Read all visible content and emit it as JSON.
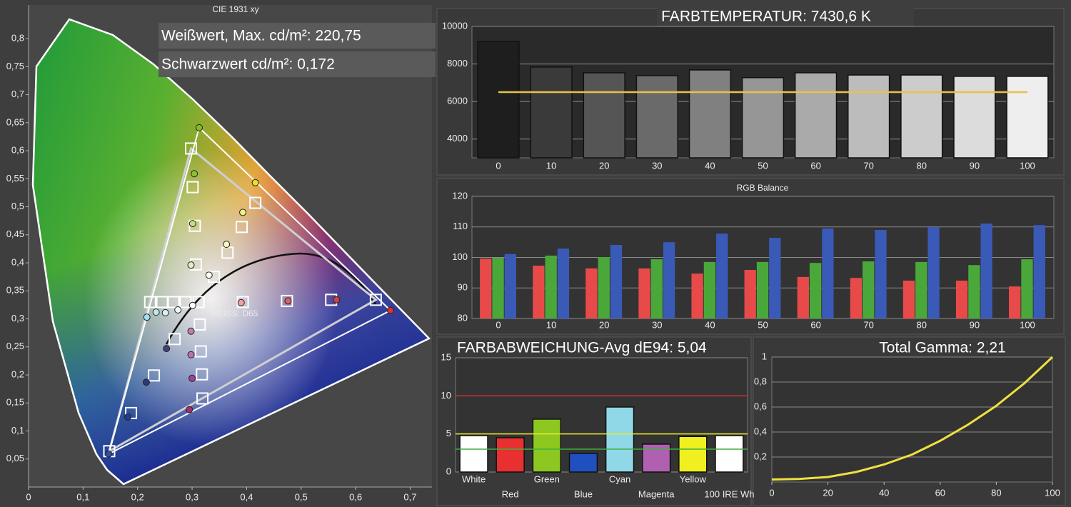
{
  "chart_data": [
    {
      "type": "scatter",
      "title": "CIE 1931 xy",
      "annotations": [
        "Weißwert, Max. cd/m²: 220,75",
        "Schwarzwert cd/m²: 0,172",
        "WEISS: D65"
      ],
      "xlim": [
        0,
        0.74
      ],
      "ylim": [
        0,
        0.86
      ],
      "xticks": [
        0,
        {
          "value": 0.1,
          "label": "0,1"
        },
        {
          "value": 0.2,
          "label": "0,2"
        },
        {
          "value": 0.3,
          "label": "0,3"
        },
        {
          "value": 0.4,
          "label": "0,4"
        },
        {
          "value": 0.5,
          "label": "0,5"
        },
        {
          "value": 0.6,
          "label": "0,6"
        },
        {
          "value": 0.7,
          "label": "0,7"
        }
      ],
      "yticks": [
        {
          "value": 0.05,
          "label": "0,05"
        },
        {
          "value": 0.1,
          "label": "0,1"
        },
        {
          "value": 0.15,
          "label": "0,15"
        },
        {
          "value": 0.2,
          "label": "0,2"
        },
        {
          "value": 0.25,
          "label": "0,25"
        },
        {
          "value": 0.3,
          "label": "0,3"
        },
        {
          "value": 0.35,
          "label": "0,35"
        },
        {
          "value": 0.4,
          "label": "0,4"
        },
        {
          "value": 0.45,
          "label": "0,45"
        },
        {
          "value": 0.5,
          "label": "0,5"
        },
        {
          "value": 0.55,
          "label": "0,55"
        },
        {
          "value": 0.6,
          "label": "0,6"
        },
        {
          "value": 0.65,
          "label": "0,65"
        },
        {
          "value": 0.7,
          "label": "0,7"
        },
        {
          "value": 0.75,
          "label": "0,75"
        },
        {
          "value": 0.8,
          "label": "0,8"
        }
      ],
      "grid": false,
      "series": [
        {
          "marker": "square",
          "color": "#ffffff",
          "x": [
            0.637,
            0.298,
            0.148,
            0.301,
            0.305,
            0.307,
            0.312,
            0.314,
            0.316,
            0.318,
            0.319,
            0.268,
            0.23,
            0.188,
            0.223,
            0.245,
            0.266,
            0.288,
            0.416,
            0.391,
            0.365,
            0.34,
            0.555,
            0.474,
            0.393
          ],
          "values": [
            0.334,
            0.604,
            0.064,
            0.535,
            0.466,
            0.397,
            0.33,
            0.29,
            0.242,
            0.201,
            0.158,
            0.264,
            0.199,
            0.132,
            0.33,
            0.33,
            0.33,
            0.33,
            0.507,
            0.464,
            0.418,
            0.375,
            0.334,
            0.332,
            0.33
          ]
        },
        {
          "marker": "circle",
          "color": "#ffffff",
          "x": [
            0.664,
            0.313,
            0.147,
            0.304,
            0.301,
            0.298,
            0.301,
            0.298,
            0.298,
            0.3,
            0.295,
            0.253,
            0.216,
            0.182,
            0.217,
            0.234,
            0.251,
            0.274,
            0.416,
            0.393,
            0.363,
            0.331,
            0.565,
            0.476,
            0.39
          ],
          "values": [
            0.315,
            0.641,
            0.059,
            0.559,
            0.47,
            0.396,
            0.324,
            0.278,
            0.236,
            0.194,
            0.138,
            0.247,
            0.187,
            0.125,
            0.303,
            0.312,
            0.311,
            0.316,
            0.543,
            0.49,
            0.433,
            0.378,
            0.334,
            0.332,
            0.329
          ],
          "colors": [
            "#e03030",
            "#80c020",
            "#3050a0",
            "#90c030",
            "#c0e080",
            "#e0f0c0",
            "#ffffff",
            "#c080b0",
            "#c070b0",
            "#a04090",
            "#a03070",
            "#404080",
            "#303878",
            "#2a3a8a",
            "#a0e0f0",
            "#c0e8f0",
            "#d8f0f8",
            "#f0f8ff",
            "#e8e020",
            "#f0f080",
            "#f8f8c0",
            "#fffff0",
            "#d04040",
            "#e06060",
            "#f0a0a0"
          ]
        }
      ]
    },
    {
      "type": "bar",
      "title": "FARBTEMPERATUR: 7430,6 K",
      "categories": [
        "0",
        "10",
        "20",
        "30",
        "40",
        "50",
        "60",
        "70",
        "80",
        "90",
        "100"
      ],
      "values": [
        9200,
        7835,
        7530,
        7380,
        7680,
        7270,
        7530,
        7410,
        7410,
        7340,
        7340
      ],
      "colors": [
        "#1e1e1e",
        "#3a3a3a",
        "#555555",
        "#6a6a6a",
        "#808080",
        "#969696",
        "#aaaaaa",
        "#bcbcbc",
        "#cccccc",
        "#dcdcdc",
        "#eeeeee"
      ],
      "ylim": [
        3000,
        10000
      ],
      "yticks": [
        4000,
        6000,
        8000,
        10000
      ],
      "grid": true,
      "reference_lines": [
        {
          "value": 6500,
          "color": "#e6c24a"
        }
      ]
    },
    {
      "type": "bar",
      "title": "RGB Balance",
      "categories": [
        "0",
        "10",
        "20",
        "30",
        "40",
        "50",
        "60",
        "70",
        "80",
        "90",
        "100"
      ],
      "series": [
        {
          "color": "#e84a4a",
          "values": [
            99.6,
            97.3,
            96.4,
            96.4,
            94.7,
            95.9,
            93.6,
            93.3,
            92.4,
            92.4,
            90.5
          ]
        },
        {
          "color": "#4aa83a",
          "values": [
            99.9,
            100.6,
            100.1,
            99.4,
            98.5,
            98.5,
            98.2,
            98.7,
            98.5,
            97.5,
            99.4
          ]
        },
        {
          "color": "#3a5ab8",
          "values": [
            101.1,
            102.9,
            104.1,
            105.0,
            107.8,
            106.4,
            109.5,
            109.0,
            109.9,
            111.1,
            110.6
          ]
        }
      ],
      "ylim": [
        80,
        120
      ],
      "yticks": [
        80,
        90,
        100,
        110,
        120
      ],
      "grid": true
    },
    {
      "type": "bar",
      "title": "FARBABWEICHUNG-Avg dE94: 5,04",
      "categories": [
        "White",
        "Red",
        "Green",
        "Blue",
        "Cyan",
        "Magenta",
        "Yellow",
        "100 IRE Wh"
      ],
      "values": [
        4.78,
        4.5,
        6.94,
        2.44,
        8.53,
        3.66,
        4.66,
        4.78
      ],
      "colors": [
        "#ffffff",
        "#e83030",
        "#8cc820",
        "#2050c0",
        "#90d8e8",
        "#b060b0",
        "#f0f020",
        "#ffffff"
      ],
      "ylim": [
        0,
        15
      ],
      "yticks": [
        0,
        5,
        10,
        15
      ],
      "grid": true,
      "reference_lines": [
        {
          "value": 10,
          "color": "#d03030"
        },
        {
          "value": 5,
          "color": "#e8e830"
        },
        {
          "value": 3,
          "color": "#40b040"
        }
      ]
    },
    {
      "type": "line",
      "title": "Total Gamma: 2,21",
      "x": [
        0,
        10,
        20,
        30,
        40,
        50,
        60,
        70,
        80,
        90,
        100
      ],
      "values": [
        0.02,
        0.025,
        0.04,
        0.08,
        0.14,
        0.22,
        0.33,
        0.46,
        0.61,
        0.79,
        1.0
      ],
      "color": "#f0e040",
      "xlim": [
        0,
        100
      ],
      "xticks": [
        0,
        20,
        40,
        60,
        80,
        100
      ],
      "ylim": [
        0,
        1
      ],
      "yticks": [
        {
          "value": 0.2,
          "label": "0,2"
        },
        {
          "value": 0.4,
          "label": "0,4"
        },
        {
          "value": 0.6,
          "label": "0,6"
        },
        {
          "value": 0.8,
          "label": "0,8"
        },
        1
      ],
      "grid": true
    }
  ]
}
